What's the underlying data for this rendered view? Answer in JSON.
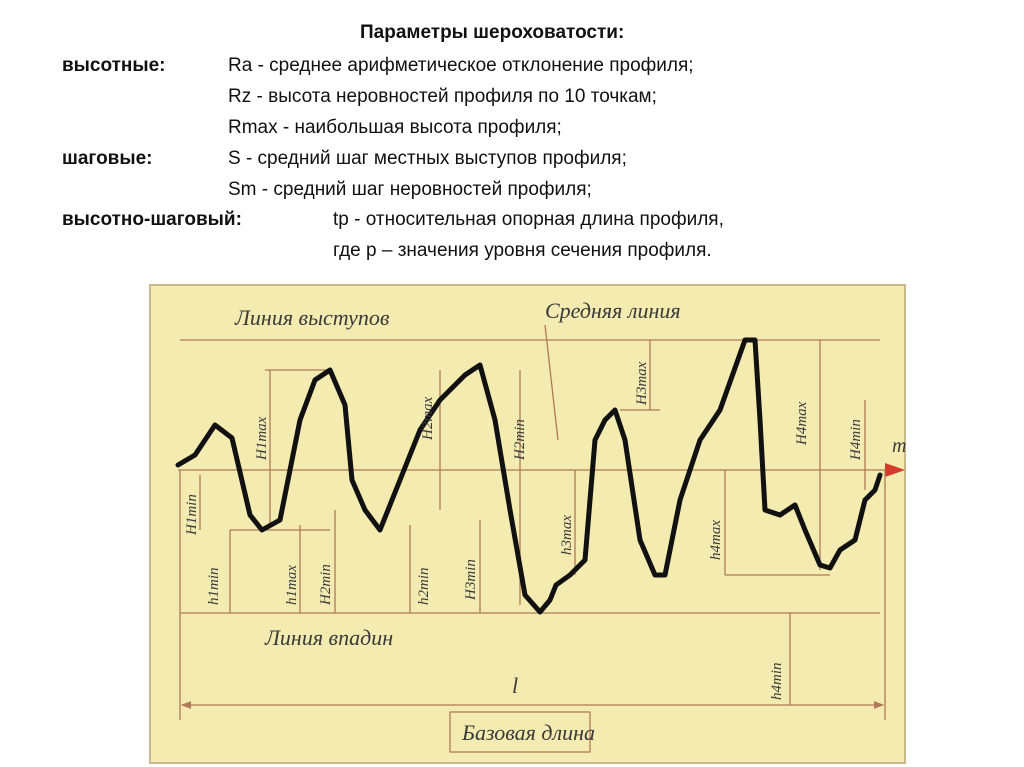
{
  "header": {
    "title": "Параметры шероховатости:"
  },
  "groups": [
    {
      "label": "высотные:",
      "items": [
        "Ra  - среднее арифметическое отклонение профиля;",
        "Rz - высота неровностей профиля по 10 точкам;",
        "Rmax - наибольшая высота профиля;"
      ]
    },
    {
      "label": "шаговые:",
      "items": [
        "S - средний шаг местных выступов профиля;",
        "Sm - средний шаг неровностей профиля;"
      ]
    },
    {
      "label": "высотно-шаговый:",
      "items": [
        "tp - относительная опорная длина профиля,",
        "где p – значения уровня сечения профиля."
      ]
    }
  ],
  "diagram": {
    "peak_line": "Линия выступов",
    "mean_line": "Средняя линия",
    "valley_line": "Линия впадин",
    "base_length": "Базовая длина",
    "l": "l",
    "m": "m",
    "dims": [
      "H1max",
      "H1min",
      "h1min",
      "h1max",
      "H2max",
      "H2min",
      "h2min",
      "H2min",
      "H3min",
      "H3max",
      "h3max",
      "H4max",
      "H4min",
      "h4max",
      "h4min"
    ]
  }
}
